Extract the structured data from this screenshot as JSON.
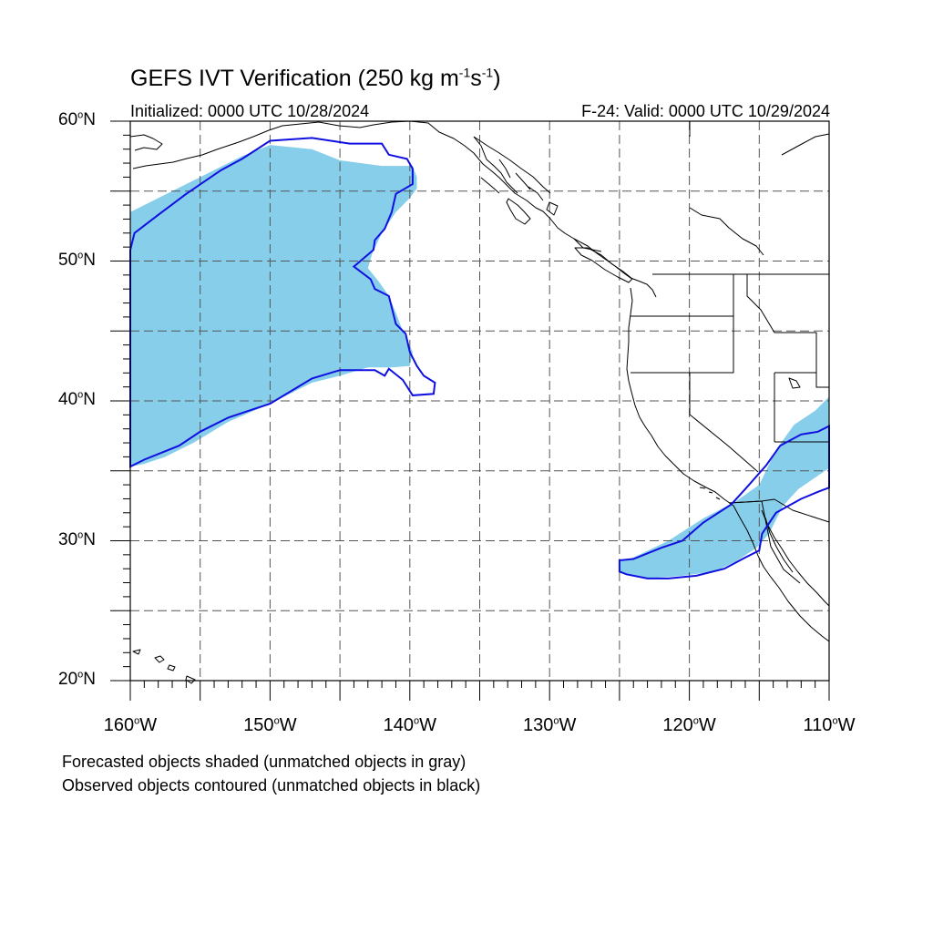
{
  "figure": {
    "title_main": "GEFS IVT Verification (250 kg m",
    "title_exp1": "-1",
    "title_mid": "s",
    "title_exp2": "-1",
    "title_end": ")",
    "initialized": "Initialized: 0000 UTC 10/28/2024",
    "valid": "F-24: Valid: 0000 UTC 10/29/2024"
  },
  "axes": {
    "lat_ticks": [
      {
        "deg": "60",
        "suffix": "N",
        "value": 60
      },
      {
        "deg": "50",
        "suffix": "N",
        "value": 50
      },
      {
        "deg": "40",
        "suffix": "N",
        "value": 40
      },
      {
        "deg": "30",
        "suffix": "N",
        "value": 30
      },
      {
        "deg": "20",
        "suffix": "N",
        "value": 20
      }
    ],
    "lon_ticks": [
      {
        "deg": "160",
        "suffix": "W",
        "value": -160
      },
      {
        "deg": "150",
        "suffix": "W",
        "value": -150
      },
      {
        "deg": "140",
        "suffix": "W",
        "value": -140
      },
      {
        "deg": "130",
        "suffix": "W",
        "value": -130
      },
      {
        "deg": "120",
        "suffix": "W",
        "value": -120
      },
      {
        "deg": "110",
        "suffix": "W",
        "value": -110
      }
    ],
    "degree_symbol": "o",
    "lon_range": [
      -160,
      -110
    ],
    "lat_range": [
      20,
      60
    ],
    "gridlines": true
  },
  "legend": {
    "line1": "Forecasted objects shaded (unmatched objects in gray)",
    "line2": "Observed objects contoured (unmatched objects in black)"
  },
  "colors": {
    "forecast_fill": "#87ceeb",
    "observed_contour": "#1010e0",
    "coastline": "#000000",
    "grid": "#555555"
  },
  "objects": {
    "forecast_objects": [
      {
        "name": "northern Pacific forecast object",
        "matched": true,
        "outline": [
          [
            -160,
            53.5
          ],
          [
            -157,
            55
          ],
          [
            -154,
            56.5
          ],
          [
            -152,
            57.5
          ],
          [
            -150,
            58.3
          ],
          [
            -147,
            58
          ],
          [
            -145,
            57.2
          ],
          [
            -142,
            56.8
          ],
          [
            -139.8,
            56.8
          ],
          [
            -139.5,
            56
          ],
          [
            -139.5,
            55.2
          ],
          [
            -140,
            54.5
          ],
          [
            -141,
            53.5
          ],
          [
            -142,
            52
          ],
          [
            -142.7,
            50.5
          ],
          [
            -143,
            49.5
          ],
          [
            -142.2,
            48.5
          ],
          [
            -141.5,
            47.5
          ],
          [
            -141,
            46.3
          ],
          [
            -140.5,
            45
          ],
          [
            -139.8,
            43.5
          ],
          [
            -140,
            42.5
          ],
          [
            -141.3,
            42.4
          ],
          [
            -143,
            42.4
          ],
          [
            -145,
            41.8
          ],
          [
            -147,
            41.3
          ],
          [
            -150,
            39.8
          ],
          [
            -153,
            38.5
          ],
          [
            -155.5,
            37
          ],
          [
            -157.5,
            36
          ],
          [
            -159,
            35.5
          ],
          [
            -160,
            35.3
          ]
        ]
      },
      {
        "name": "southern California forecast object",
        "matched": true,
        "outline": [
          [
            -125,
            27.7
          ],
          [
            -123,
            27.3
          ],
          [
            -120.5,
            27.5
          ],
          [
            -118.2,
            27.8
          ],
          [
            -116.7,
            28.5
          ],
          [
            -115.2,
            29.5
          ],
          [
            -114.3,
            30.5
          ],
          [
            -113.3,
            32.5
          ],
          [
            -112.2,
            33.7
          ],
          [
            -110,
            35.2
          ],
          [
            -110,
            40.3
          ],
          [
            -111,
            39.3
          ],
          [
            -112.5,
            38.3
          ],
          [
            -113.8,
            36.5
          ],
          [
            -115,
            34
          ],
          [
            -116.7,
            32.8
          ],
          [
            -119,
            31.6
          ],
          [
            -121.5,
            30
          ],
          [
            -124,
            28.8
          ],
          [
            -125,
            28.5
          ]
        ]
      }
    ],
    "observed_objects": [
      {
        "name": "northern Pacific observed contour",
        "matched": true,
        "outline": [
          [
            -160,
            50.8
          ],
          [
            -159.7,
            52
          ],
          [
            -158,
            53.3
          ],
          [
            -156,
            54.8
          ],
          [
            -153.5,
            56.5
          ],
          [
            -152,
            57.3
          ],
          [
            -150,
            58.6
          ],
          [
            -147,
            58.8
          ],
          [
            -145,
            58.5
          ],
          [
            -144.3,
            58.4
          ],
          [
            -142,
            58.4
          ],
          [
            -141.5,
            57.6
          ],
          [
            -140.2,
            57.3
          ],
          [
            -139.8,
            56.6
          ],
          [
            -139.8,
            55.5
          ],
          [
            -141,
            54.8
          ],
          [
            -141.3,
            53.5
          ],
          [
            -141.8,
            52.3
          ],
          [
            -142.5,
            51.5
          ],
          [
            -142.6,
            50.8
          ],
          [
            -143.3,
            50.2
          ],
          [
            -144,
            49.6
          ],
          [
            -142.8,
            48.7
          ],
          [
            -142.5,
            48
          ],
          [
            -141.5,
            47.5
          ],
          [
            -141,
            45.5
          ],
          [
            -140.3,
            44.8
          ],
          [
            -140,
            43.5
          ],
          [
            -139.5,
            42.5
          ],
          [
            -139,
            41.8
          ],
          [
            -138.2,
            41.3
          ],
          [
            -138.3,
            40.5
          ],
          [
            -139.8,
            40.4
          ],
          [
            -140.5,
            41.5
          ],
          [
            -141.5,
            42.3
          ],
          [
            -141.8,
            41.8
          ],
          [
            -142.5,
            42.2
          ],
          [
            -143.8,
            42.2
          ],
          [
            -145,
            42.2
          ],
          [
            -147,
            41.6
          ],
          [
            -148,
            41
          ],
          [
            -150,
            39.8
          ],
          [
            -151.5,
            39.3
          ],
          [
            -153,
            38.8
          ],
          [
            -155,
            37.8
          ],
          [
            -156.5,
            36.8
          ],
          [
            -158,
            36.2
          ],
          [
            -159,
            35.8
          ],
          [
            -160,
            35.3
          ]
        ]
      },
      {
        "name": "southern California observed contour",
        "matched": true,
        "outline": [
          [
            -125,
            27.8
          ],
          [
            -125,
            28.6
          ],
          [
            -124,
            28.7
          ],
          [
            -122,
            29.5
          ],
          [
            -120.5,
            30
          ],
          [
            -119,
            31.3
          ],
          [
            -117,
            32.6
          ],
          [
            -116,
            33.7
          ],
          [
            -114.5,
            35.4
          ],
          [
            -113.5,
            36.8
          ],
          [
            -112,
            37.6
          ],
          [
            -110.8,
            37.8
          ],
          [
            -110,
            38.2
          ],
          [
            -110,
            33.8
          ],
          [
            -110.8,
            33.5
          ],
          [
            -112,
            33
          ],
          [
            -113.8,
            32
          ],
          [
            -114.8,
            30.5
          ],
          [
            -115,
            29.3
          ],
          [
            -116,
            28.8
          ],
          [
            -117.5,
            28
          ],
          [
            -119.5,
            27.5
          ],
          [
            -121.5,
            27.3
          ],
          [
            -123,
            27.3
          ],
          [
            -124.5,
            27.6
          ]
        ]
      }
    ]
  }
}
